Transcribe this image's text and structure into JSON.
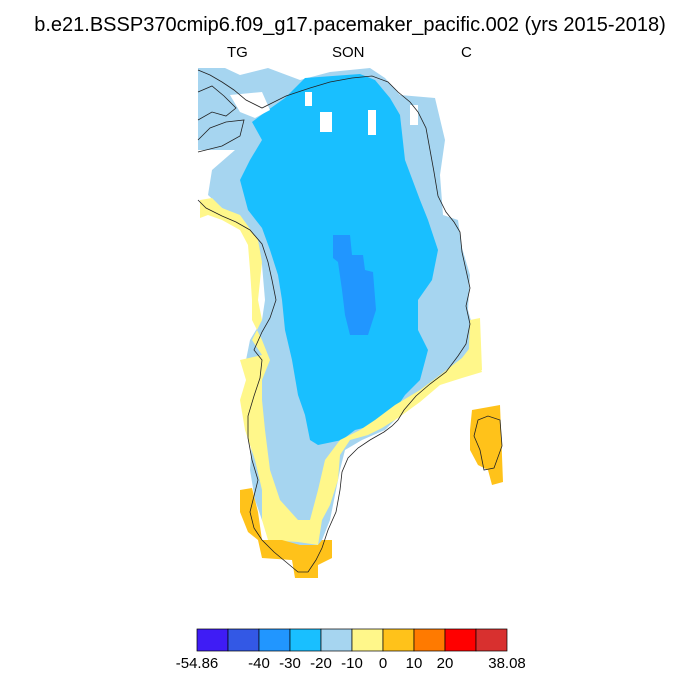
{
  "title": "b.e21.BSSP370cmip6.f09_g17.pacemaker_pacific.002 (yrs 2015-2018)",
  "subtitles": {
    "left": "TG",
    "center": "SON",
    "right": "C"
  },
  "colors": {
    "bins": [
      "#3f1cf5",
      "#3358e5",
      "#2196ff",
      "#19bfff",
      "#a6d5f0",
      "#fff78a",
      "#ffc21a",
      "#ff7a00",
      "#ff0000",
      "#d8302f"
    ],
    "coastline": "#222222"
  },
  "colorbar": {
    "labels": [
      "-54.86",
      "-40",
      "-30",
      "-20",
      "-10",
      "0",
      "10",
      "20",
      "38.08"
    ]
  },
  "map": {
    "region": "Greenland",
    "field": "TG",
    "season": "SON",
    "units": "C"
  }
}
